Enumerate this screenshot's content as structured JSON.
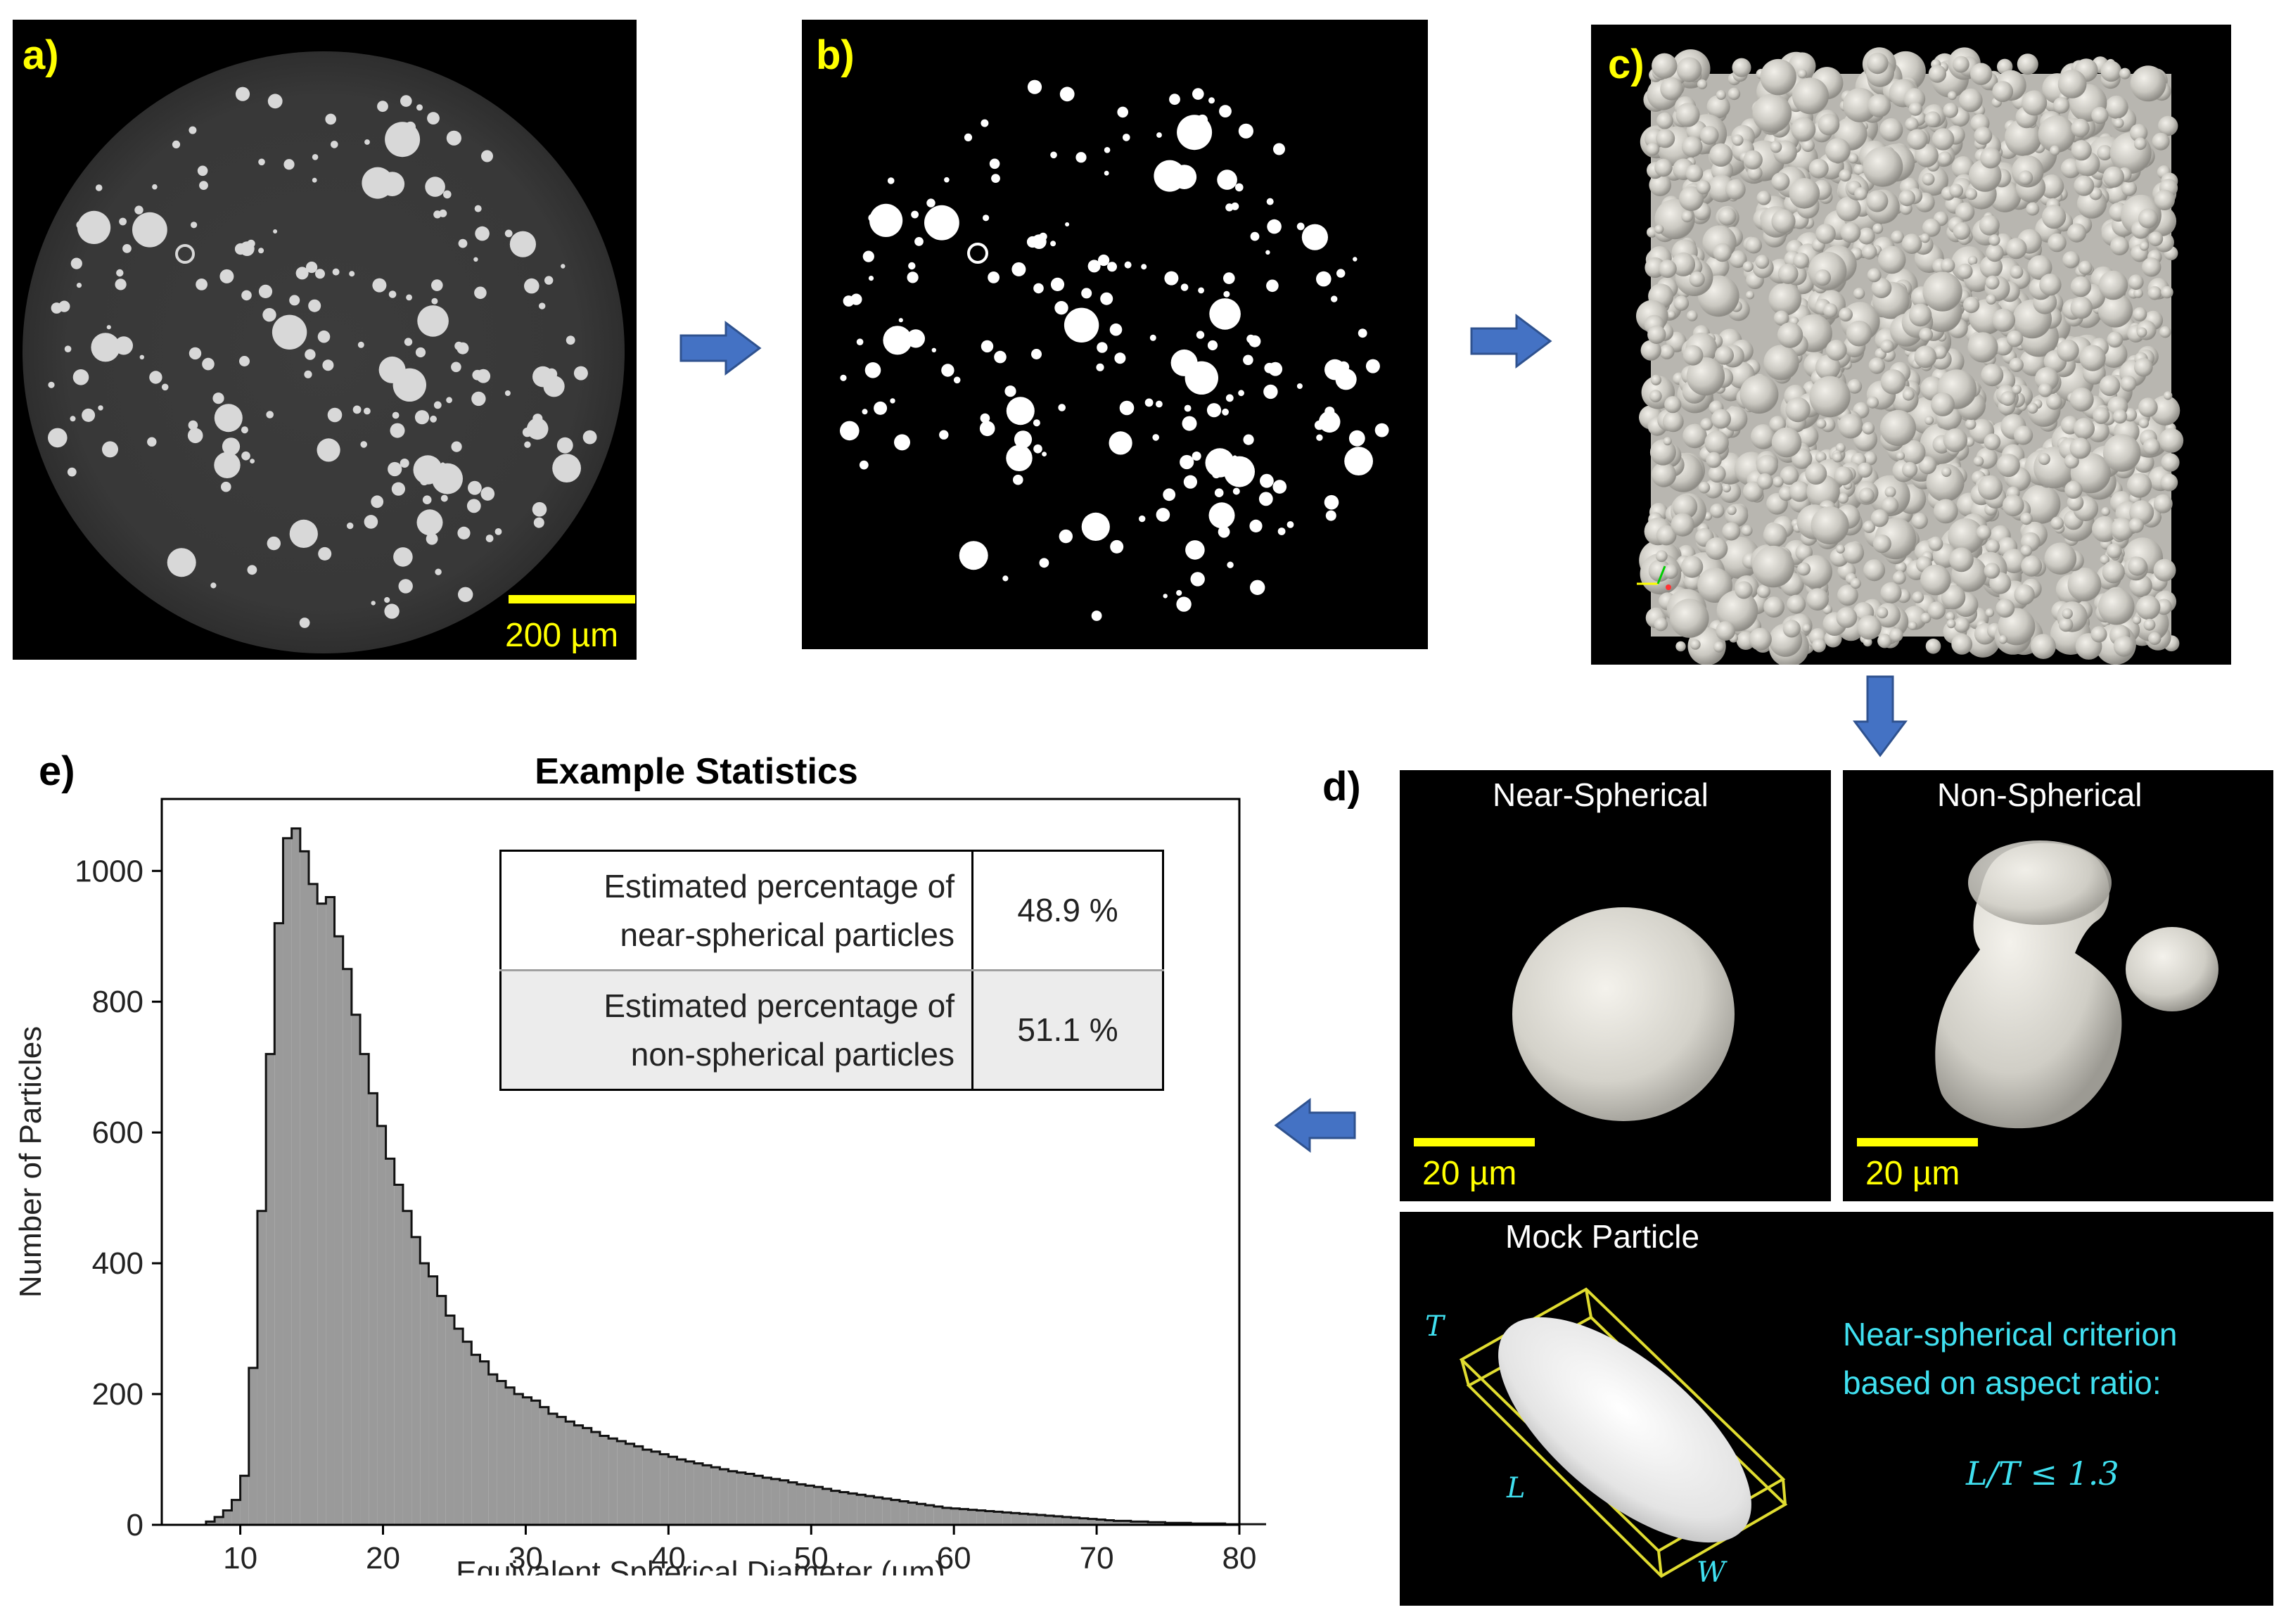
{
  "panels": {
    "a": {
      "label": "a)",
      "scale_bar": "200 µm"
    },
    "b": {
      "label": "b)"
    },
    "c": {
      "label": "c)"
    },
    "d": {
      "label": "d)",
      "near_spherical": {
        "title": "Near-Spherical",
        "scale_bar": "20 µm"
      },
      "non_spherical": {
        "title": "Non-Spherical",
        "scale_bar": "20 µm"
      },
      "mock": {
        "title": "Mock Particle",
        "dim_t": "T",
        "dim_l": "L",
        "dim_w": "W",
        "criterion_line1": "Near-spherical criterion",
        "criterion_line2": "based on aspect ratio:",
        "formula": "L/T ≤ 1.3"
      }
    },
    "e": {
      "label": "e)",
      "table": {
        "rows": [
          {
            "line1": "Estimated percentage of",
            "line2": "near-spherical particles",
            "value": "48.9 %"
          },
          {
            "line1": "Estimated percentage of",
            "line2": "non-spherical particles",
            "value": "51.1 %"
          }
        ]
      }
    }
  },
  "colors": {
    "arrow": "#4472c4",
    "highlight": "#ffff00",
    "cyan_text": "#40e0f0",
    "hist_fill": "#9a9a9a"
  },
  "chart_data": {
    "type": "bar",
    "title": "Example Statistics",
    "xlabel": "Equivalent Spherical Diameter (µm)",
    "ylabel": "Number of Particles",
    "xlim": [
      4.5,
      80
    ],
    "ylim": [
      0,
      1110
    ],
    "xticks": [
      10,
      20,
      30,
      40,
      50,
      60,
      70,
      80
    ],
    "yticks": [
      0,
      200,
      400,
      600,
      800,
      1000
    ],
    "bin_width": 0.6,
    "bin_edges_start": 7.6,
    "values": [
      5,
      12,
      22,
      38,
      75,
      240,
      480,
      720,
      920,
      1050,
      1065,
      1030,
      980,
      950,
      960,
      900,
      850,
      780,
      720,
      660,
      610,
      560,
      520,
      480,
      440,
      400,
      380,
      350,
      320,
      300,
      280,
      260,
      250,
      230,
      220,
      210,
      200,
      195,
      190,
      180,
      170,
      165,
      158,
      152,
      148,
      142,
      136,
      132,
      128,
      124,
      120,
      115,
      112,
      108,
      104,
      100,
      97,
      94,
      91,
      88,
      85,
      82,
      80,
      78,
      75,
      72,
      70,
      68,
      65,
      62,
      60,
      58,
      55,
      52,
      50,
      48,
      46,
      44,
      42,
      40,
      38,
      36,
      34,
      32,
      30,
      28,
      26,
      25,
      24,
      23,
      22,
      21,
      20,
      19,
      18,
      17,
      16,
      15,
      14,
      13,
      12,
      11,
      10,
      9,
      8,
      7,
      6,
      6,
      5,
      5,
      4,
      4,
      3,
      3,
      3,
      2,
      2,
      2,
      2,
      1,
      1,
      1,
      1,
      1,
      1,
      1
    ],
    "grid": false,
    "legend": "none"
  }
}
